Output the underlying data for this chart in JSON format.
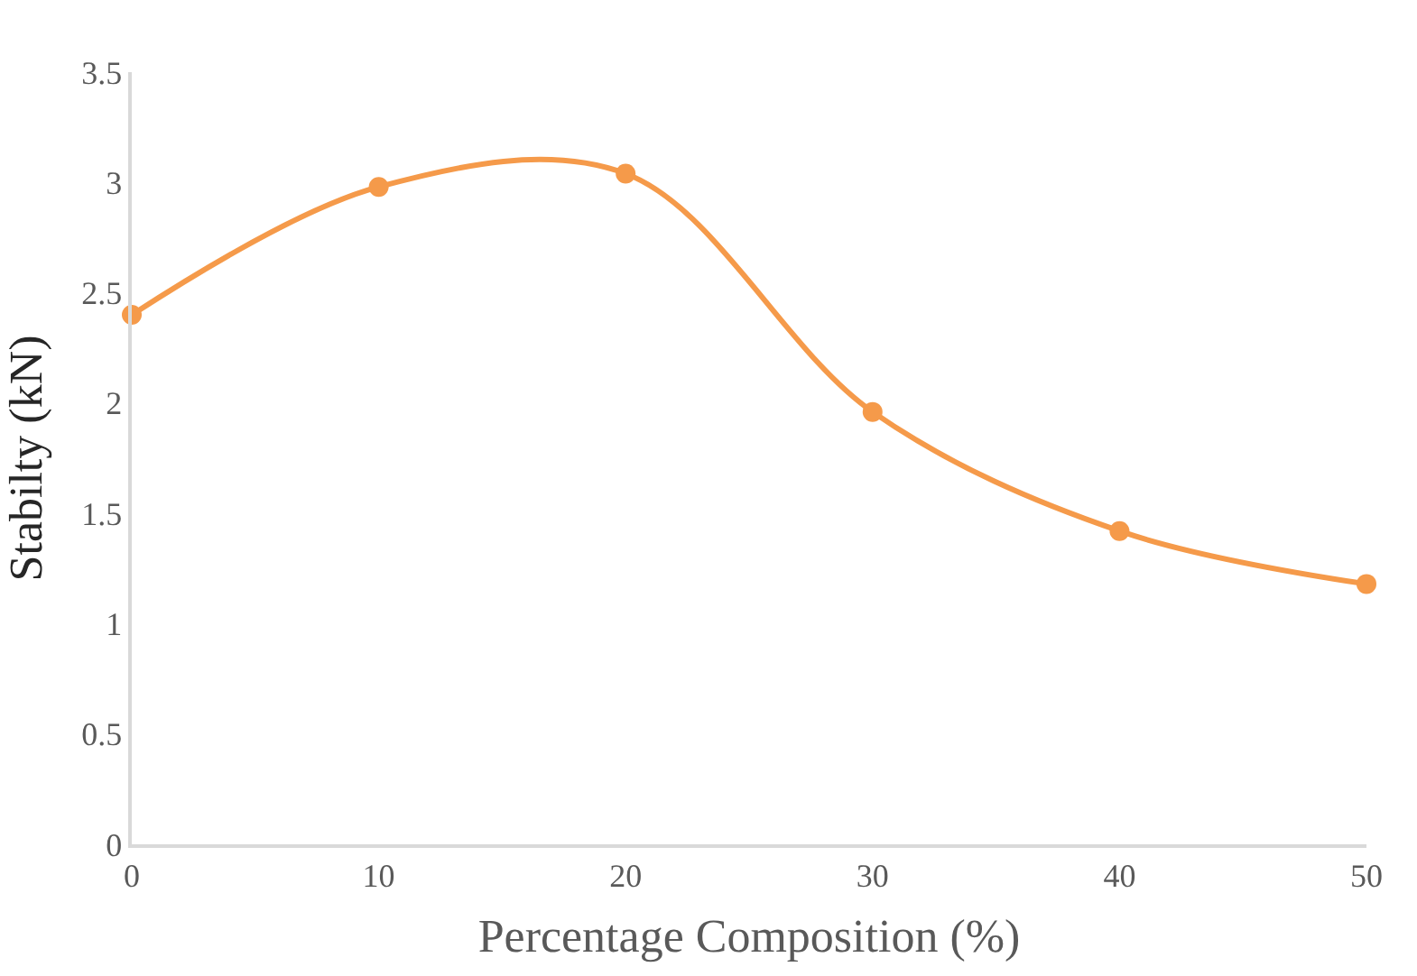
{
  "chart_data": {
    "type": "line",
    "xlabel": "Percentage Composition (%)",
    "ylabel": "Stabilty (kN)",
    "x": [
      0,
      10,
      20,
      30,
      40,
      50
    ],
    "series": [
      {
        "color": "#f59a4a",
        "values": [
          2.4,
          2.98,
          3.04,
          1.96,
          1.42,
          1.18
        ]
      }
    ],
    "xlim": [
      0,
      50
    ],
    "xticks": [
      0,
      10,
      20,
      30,
      40,
      50
    ],
    "ylim": [
      0,
      3.5
    ],
    "yticks": [
      0,
      {
        "value": 0.5,
        "label": "0.5"
      },
      1,
      {
        "value": 1.5,
        "label": "1.5"
      },
      2,
      {
        "value": 2.5,
        "label": "2.5"
      },
      3,
      {
        "value": 3.5,
        "label": "3.5"
      }
    ],
    "marker": "circle",
    "line_style": "solid"
  }
}
